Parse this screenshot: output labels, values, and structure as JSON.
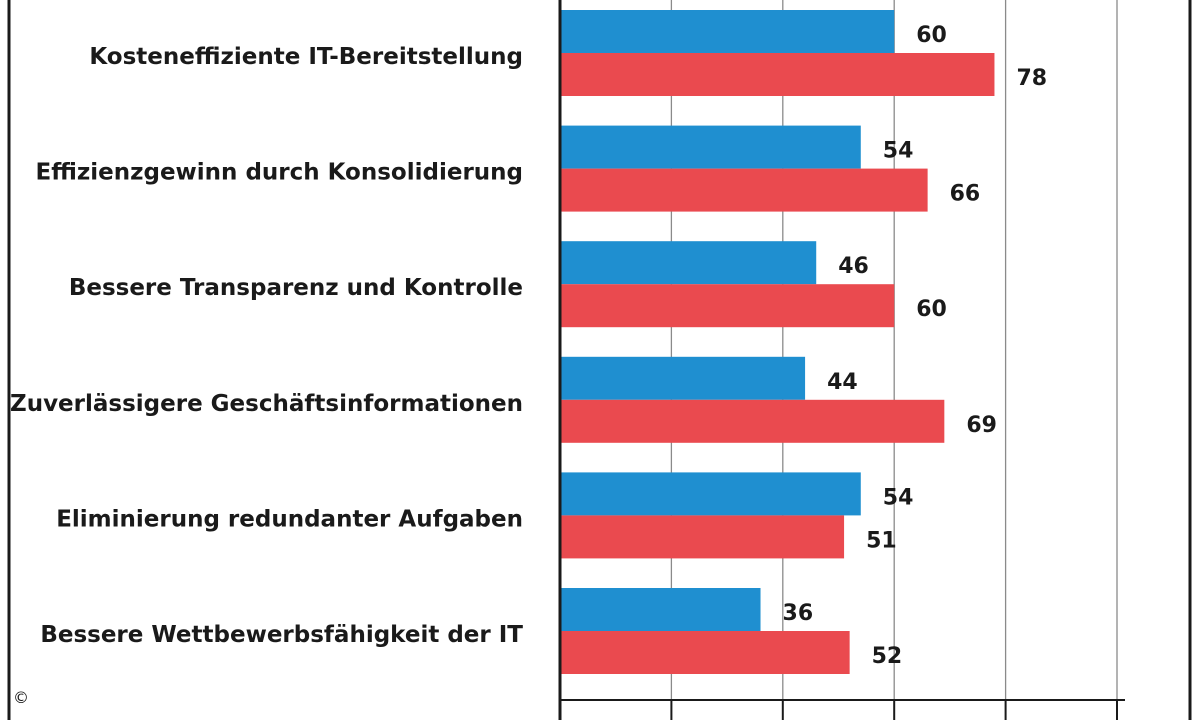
{
  "chart_data": {
    "type": "bar",
    "orientation": "horizontal",
    "categories": [
      "Kosteneffiziente IT-Bereitstellung",
      "Effizienzgewinn durch Konsolidierung",
      "Bessere Transparenz und Kontrolle",
      "Zuverlässigere Geschäftsinformationen",
      "Eliminierung redundanter Aufgaben",
      "Bessere Wettbewerbsfähigkeit der IT"
    ],
    "series": [
      {
        "values": [
          60,
          54,
          46,
          44,
          54,
          36
        ],
        "color": "#1f8fd0"
      },
      {
        "values": [
          78,
          66,
          60,
          69,
          51,
          52
        ],
        "color": "#ea4a4f"
      }
    ],
    "xlim": [
      0,
      100
    ],
    "grid": true,
    "value_labels": true
  },
  "footer": {
    "copyright": "©"
  }
}
